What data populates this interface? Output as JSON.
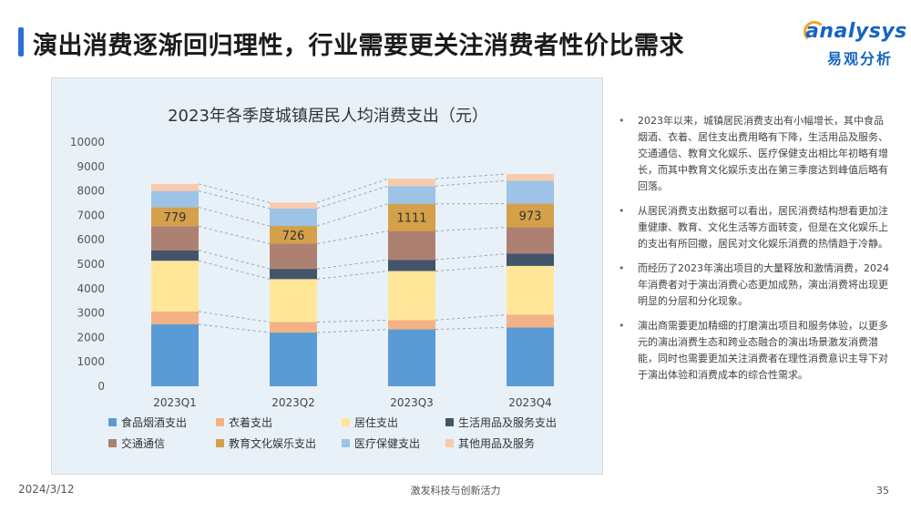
{
  "page": {
    "title": "演出消费逐渐回归理性，行业需要更关注消费者性价比需求",
    "logo_en": "analysys",
    "logo_cn": "易观分析",
    "footer_date": "2024/3/12",
    "footer_center": "激发科技与创新活力",
    "page_number": "35"
  },
  "bullets": [
    "2023年以来，城镇居民消费支出有小幅增长，其中食品烟酒、衣着、居住支出费用略有下降，生活用品及服务、交通通信、教育文化娱乐、医疗保健支出相比年初略有增长，而其中教育文化娱乐支出在第三季度达到峰值后略有回落。",
    "从居民消费支出数据可以看出，居民消费结构想看更加注重健康、教育、文化生活等方面转变，但是在文化娱乐上的支出有所回撤，居民对文化娱乐消费的热情趋于冷静。",
    "而经历了2023年演出项目的大量释放和激情消费，2024年消费者对于演出消费心态更加成熟，演出消费将出现更明显的分层和分化现象。",
    "演出商需要更加精细的打磨演出项目和服务体验，以更多元的演出消费生态和跨业态融合的演出场景激发消费潜能，同时也需要更加关注消费者在理性消费意识主导下对于演出体验和消费成本的综合性需求。"
  ],
  "chart_data": {
    "type": "bar",
    "stacked": true,
    "title": "2023年各季度城镇居民人均消费支出（元）",
    "xlabel": "",
    "ylabel": "",
    "ylim": [
      0,
      10000
    ],
    "yticks": [
      0,
      1000,
      2000,
      3000,
      4000,
      5000,
      6000,
      7000,
      8000,
      9000,
      10000
    ],
    "grid": false,
    "legend_position": "bottom",
    "categories": [
      "2023Q1",
      "2023Q2",
      "2023Q3",
      "2023Q4"
    ],
    "series": [
      {
        "name": "食品烟酒支出",
        "color": "#5b9bd5",
        "values": [
          2540,
          2200,
          2330,
          2410
        ]
      },
      {
        "name": "衣着支出",
        "color": "#f4b183",
        "values": [
          520,
          430,
          380,
          520
        ]
      },
      {
        "name": "居住支出",
        "color": "#ffe699",
        "values": [
          2080,
          1760,
          2010,
          2000
        ]
      },
      {
        "name": "生活用品及服务支出",
        "color": "#44546a",
        "values": [
          430,
          420,
          460,
          500
        ]
      },
      {
        "name": "交通通信",
        "color": "#ad8172",
        "values": [
          980,
          1030,
          1180,
          1080
        ]
      },
      {
        "name": "教育文化娱乐支出",
        "color": "#d4a04a",
        "values": [
          779,
          726,
          1111,
          973
        ]
      },
      {
        "name": "医疗保健支出",
        "color": "#9dc3e6",
        "values": [
          670,
          720,
          730,
          940
        ]
      },
      {
        "name": "其他用品及服务",
        "color": "#f8cbad",
        "values": [
          290,
          240,
          300,
          270
        ]
      }
    ],
    "data_labels": {
      "series": "教育文化娱乐支出",
      "values": [
        779,
        726,
        1111,
        973
      ]
    }
  }
}
